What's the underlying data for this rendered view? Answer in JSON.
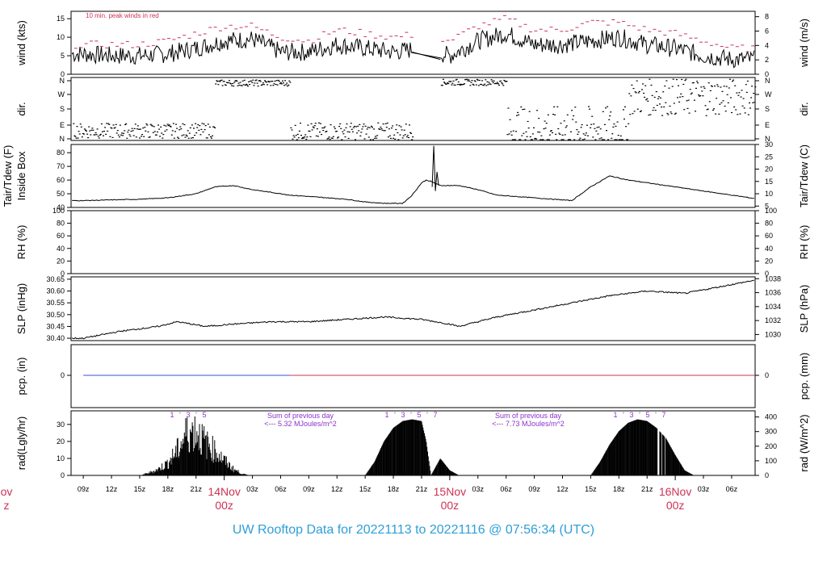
{
  "chart_data": [
    {
      "type": "line",
      "panel": "wind",
      "ylabel": "wind (kts)",
      "ylabel_right": "wind (m/s)",
      "ylim": [
        0,
        17
      ],
      "yticks": [
        0,
        5,
        10,
        15
      ],
      "yticks_right": [
        0,
        2,
        4,
        6,
        8
      ],
      "annotation": "10 min. peak winds in red",
      "series": [
        {
          "color": "#000000",
          "x": [
            0,
            3,
            6,
            9,
            12,
            15,
            18,
            21,
            24,
            27,
            30,
            33,
            36,
            39,
            42,
            45,
            48,
            51,
            54,
            57,
            60,
            63,
            66,
            69
          ],
          "values": [
            5.5,
            5,
            5,
            5.5,
            7,
            9,
            9.5,
            6,
            6,
            8,
            7,
            6,
            7,
            5,
            9,
            11,
            8,
            8,
            9,
            10,
            8,
            7,
            5,
            4
          ]
        },
        {
          "color": "#cc3355",
          "x": [
            0,
            3,
            6,
            9,
            12,
            15,
            18,
            21,
            24,
            27,
            30,
            33,
            36,
            39,
            42,
            45,
            48,
            51,
            54,
            57,
            60,
            63,
            66,
            69
          ],
          "values": [
            8,
            8,
            8,
            9,
            11,
            13,
            13,
            10,
            9,
            12,
            11,
            10,
            11,
            9,
            13,
            15,
            12,
            12,
            14,
            14,
            12,
            11,
            9,
            7
          ]
        }
      ]
    },
    {
      "type": "scatter",
      "panel": "dir",
      "ylabel": "dir.",
      "ylabel_right": "dir.",
      "yticks": [
        "N",
        "E",
        "S",
        "W",
        "N"
      ]
    },
    {
      "type": "line",
      "panel": "temperature",
      "ylabel": "Tair/Tdew (F)",
      "ylabel2": "Inside Box",
      "ylabel_right": "Tair/Tdew (C)",
      "ylim": [
        40,
        86
      ],
      "yticks": [
        40,
        50,
        60,
        70,
        80
      ],
      "yticks_right": [
        5,
        10,
        15,
        20,
        25,
        30
      ],
      "series": [
        {
          "x": [
            0,
            3,
            6,
            9,
            12,
            14,
            16,
            18,
            20,
            22,
            24,
            26,
            28,
            30,
            32,
            34,
            35,
            36,
            36.5,
            37,
            38,
            40,
            42,
            44,
            46,
            48,
            50,
            52,
            54,
            56,
            58,
            60,
            62,
            64,
            66,
            68,
            70,
            72
          ],
          "values": [
            45,
            45.5,
            46,
            47,
            50,
            55,
            56,
            53,
            51,
            49,
            48,
            47,
            46,
            44,
            43,
            43,
            49,
            58,
            60,
            59,
            56,
            56,
            53,
            49,
            48,
            47,
            46,
            45,
            55,
            63,
            60,
            58,
            56,
            54,
            52,
            50,
            48,
            46
          ]
        }
      ]
    },
    {
      "type": "line",
      "panel": "rh",
      "ylabel": "RH (%)",
      "ylabel_right": "RH (%)",
      "ylim": [
        0,
        100
      ],
      "yticks": [
        0,
        20,
        40,
        60,
        80,
        100
      ],
      "yticks_right": [
        0,
        20,
        40,
        60,
        80,
        100
      ]
    },
    {
      "type": "line",
      "panel": "pressure",
      "ylabel": "SLP (inHg)",
      "ylabel_right": "SLP (hPa)",
      "ylim": [
        30.39,
        30.66
      ],
      "yticks": [
        30.4,
        30.45,
        30.5,
        30.55,
        30.6,
        30.65
      ],
      "yticks_right": [
        1030,
        1032,
        1034,
        1036,
        1038
      ],
      "series": [
        {
          "x": [
            0,
            4,
            8,
            10,
            13,
            16,
            20,
            24,
            28,
            32,
            36,
            39,
            40,
            44,
            48,
            52,
            56,
            60,
            64,
            68,
            72
          ],
          "values": [
            30.4,
            30.43,
            30.45,
            30.47,
            30.45,
            30.46,
            30.47,
            30.47,
            30.48,
            30.49,
            30.48,
            30.46,
            30.45,
            30.49,
            30.52,
            30.55,
            30.58,
            30.6,
            30.59,
            30.62,
            30.65
          ]
        }
      ]
    },
    {
      "type": "line",
      "panel": "precipitation",
      "ylabel": "pcp. (in)",
      "ylabel_right": "pcp. (mm)",
      "yticks": [
        0
      ],
      "yticks_right": [
        0
      ],
      "series": [
        {
          "color": "#3355cc",
          "x": [
            0,
            22
          ],
          "values": [
            0,
            0
          ]
        },
        {
          "color": "#cc3355",
          "x": [
            22,
            72
          ],
          "values": [
            0,
            0
          ]
        }
      ]
    },
    {
      "type": "area",
      "panel": "radiation",
      "ylabel": "rad(Lgly/hr)",
      "ylabel_right": "rad (W/m^2)",
      "ylim": [
        0,
        38
      ],
      "yticks": [
        0,
        10,
        20,
        30
      ],
      "yticks_right": [
        0,
        100,
        200,
        300,
        400
      ],
      "annotations": [
        {
          "line1": "Sum of previous day",
          "line2": "<--- 5.32 MJoules/m^2"
        },
        {
          "line1": "Sum of previous day",
          "line2": "<--- 7.73 MJoules/m^2"
        }
      ],
      "hour_markers": [
        "1",
        "'",
        "3",
        "'",
        "5",
        "'",
        "7"
      ],
      "series": [
        {
          "x": [
            6,
            7,
            8,
            9,
            10,
            11,
            12,
            13,
            14,
            15,
            16,
            17,
            18
          ],
          "values": [
            0,
            2,
            5,
            10,
            20,
            34,
            36,
            26,
            20,
            12,
            5,
            1,
            0
          ]
        },
        {
          "x": [
            30,
            31,
            32,
            33,
            34,
            35,
            36,
            36.5,
            37,
            38,
            39,
            40
          ],
          "values": [
            0,
            8,
            20,
            28,
            32,
            33,
            32,
            20,
            0,
            10,
            3,
            0
          ]
        },
        {
          "x": [
            54,
            55,
            56,
            57,
            58,
            59,
            60,
            61,
            62,
            63,
            64,
            65
          ],
          "values": [
            0,
            8,
            18,
            26,
            31,
            33,
            32,
            28,
            22,
            12,
            3,
            0
          ]
        }
      ]
    }
  ],
  "x_axis": {
    "tick_labels": [
      "09z",
      "12z",
      "15z",
      "18z",
      "21z",
      "03z",
      "06z",
      "09z",
      "12z",
      "15z",
      "18z",
      "21z",
      "03z",
      "06z",
      "09z",
      "12z",
      "15z",
      "18z",
      "21z",
      "03z",
      "06z"
    ],
    "day_labels": [
      {
        "line1": "ov",
        "line2": "z"
      },
      {
        "line1": "14Nov",
        "line2": "00z"
      },
      {
        "line1": "15Nov",
        "line2": "00z"
      },
      {
        "line1": "16Nov",
        "line2": "00z"
      }
    ]
  },
  "title": "UW Rooftop Data for 20221113  to  20221116 @ 07:56:34  (UTC)",
  "colors": {
    "title": "#2e9fd8",
    "peak": "#cc3355",
    "annotation": "#8833cc",
    "day_label": "#cc3355",
    "pcp_blue": "#3355cc"
  }
}
